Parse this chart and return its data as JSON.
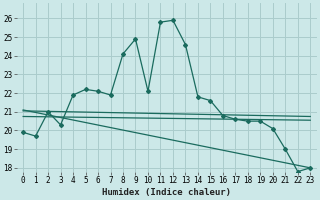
{
  "title": "",
  "xlabel": "Humidex (Indice chaleur)",
  "ylabel": "",
  "bg_color": "#cce8e8",
  "grid_color": "#aacccc",
  "line_color": "#1a6b5e",
  "xlim": [
    -0.5,
    23.5
  ],
  "ylim": [
    17.8,
    26.8
  ],
  "yticks": [
    18,
    19,
    20,
    21,
    22,
    23,
    24,
    25,
    26
  ],
  "xticks": [
    0,
    1,
    2,
    3,
    4,
    5,
    6,
    7,
    8,
    9,
    10,
    11,
    12,
    13,
    14,
    15,
    16,
    17,
    18,
    19,
    20,
    21,
    22,
    23
  ],
  "main_line_x": [
    0,
    1,
    2,
    3,
    4,
    5,
    6,
    7,
    8,
    9,
    10,
    11,
    12,
    13,
    14,
    15,
    16,
    17,
    18,
    19,
    20,
    21,
    22,
    23
  ],
  "main_line_y": [
    19.9,
    19.7,
    21.0,
    20.3,
    21.9,
    22.2,
    22.1,
    21.9,
    24.1,
    24.9,
    22.1,
    25.8,
    25.9,
    24.6,
    21.8,
    21.6,
    20.8,
    20.6,
    20.5,
    20.5,
    20.1,
    19.0,
    17.8,
    18.0
  ],
  "line2_x": [
    0,
    23
  ],
  "line2_y": [
    20.75,
    20.55
  ],
  "line3_x": [
    0,
    23
  ],
  "line3_y": [
    21.05,
    20.75
  ],
  "line4_x": [
    0,
    23
  ],
  "line4_y": [
    21.1,
    18.0
  ]
}
